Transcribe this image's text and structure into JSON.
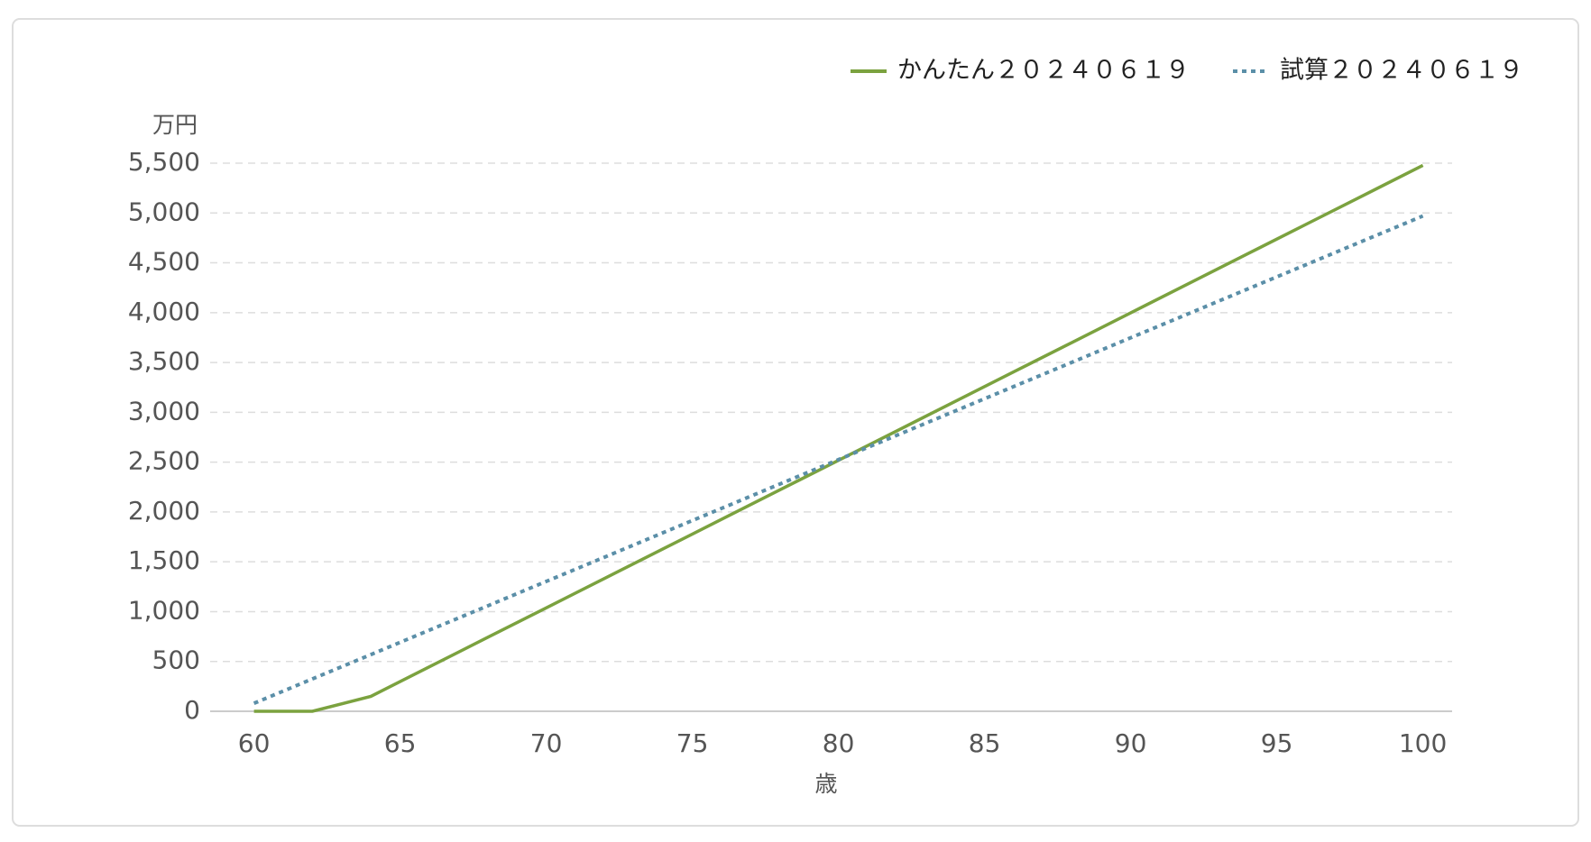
{
  "chart_data": {
    "type": "line",
    "x": [
      60,
      62,
      64,
      66,
      68,
      70,
      72,
      74,
      76,
      78,
      80,
      82,
      84,
      86,
      88,
      90,
      92,
      94,
      96,
      98,
      100
    ],
    "series": [
      {
        "name": "かんたん２０２４０６１９",
        "color": "#7ba23f",
        "dash": "solid",
        "values": [
          0,
          0,
          150,
          446,
          742,
          1038,
          1334,
          1630,
          1926,
          2222,
          2518,
          2814,
          3110,
          3406,
          3702,
          3998,
          4294,
          4590,
          4886,
          5182,
          5478
        ]
      },
      {
        "name": "試算２０２４０６１９",
        "color": "#5b8fa8",
        "dash": "dotted",
        "values": [
          80,
          325,
          569,
          814,
          1058,
          1303,
          1547,
          1792,
          2036,
          2281,
          2525,
          2770,
          3014,
          3259,
          3503,
          3748,
          3992,
          4237,
          4481,
          4726,
          4970
        ]
      }
    ],
    "xlim": [
      58.5,
      101
    ],
    "xticks": [
      60,
      65,
      70,
      75,
      80,
      85,
      90,
      95,
      100
    ],
    "ylim": [
      0,
      5500
    ],
    "yticks": [
      0,
      500,
      {
        "value": 1000,
        "label": "1,000"
      },
      {
        "value": 1500,
        "label": "1,500"
      },
      {
        "value": 2000,
        "label": "2,000"
      },
      {
        "value": 2500,
        "label": "2,500"
      },
      {
        "value": 3000,
        "label": "3,000"
      },
      {
        "value": 3500,
        "label": "3,500"
      },
      {
        "value": 4000,
        "label": "4,000"
      },
      {
        "value": 4500,
        "label": "4,500"
      },
      {
        "value": 5000,
        "label": "5,000"
      },
      {
        "value": 5500,
        "label": "5,500"
      }
    ],
    "y_label": "万円",
    "x_label": "歳",
    "grid": true,
    "legend": "top-right"
  }
}
